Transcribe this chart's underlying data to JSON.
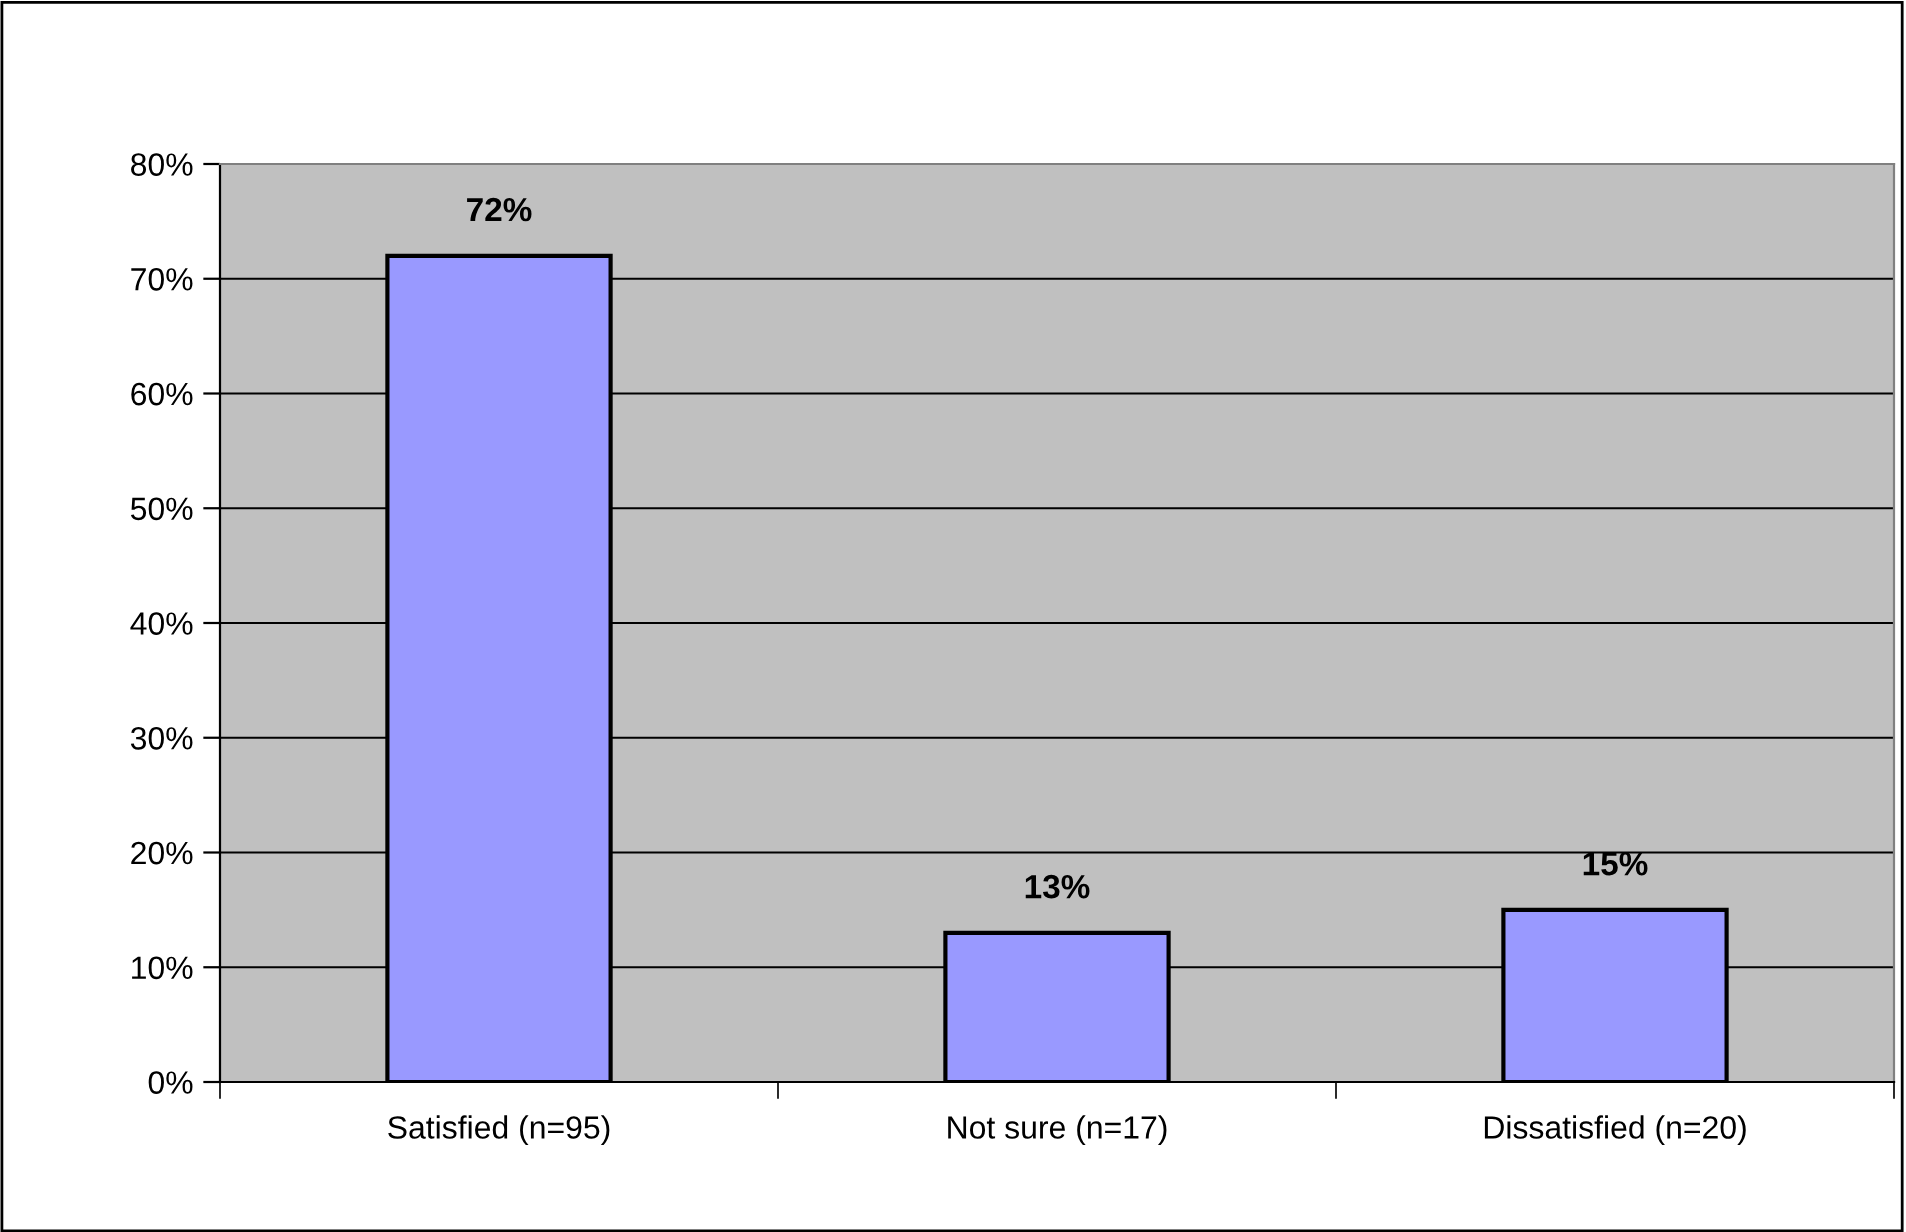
{
  "chart_data": {
    "type": "bar",
    "categories": [
      "Satisfied (n=95)",
      "Not sure (n=17)",
      "Dissatisfied (n=20)"
    ],
    "values": [
      72,
      13,
      15
    ],
    "color": "#9999ff",
    "value_labels": [
      "72%",
      "13%",
      "15%"
    ],
    "ylim": [
      0,
      80
    ],
    "yticks": [
      {
        "value": 0,
        "label": "0%"
      },
      {
        "value": 10,
        "label": "10%"
      },
      {
        "value": 20,
        "label": "20%"
      },
      {
        "value": 30,
        "label": "30%"
      },
      {
        "value": 40,
        "label": "40%"
      },
      {
        "value": 50,
        "label": "50%"
      },
      {
        "value": 60,
        "label": "60%"
      },
      {
        "value": 70,
        "label": "70%"
      },
      {
        "value": 80,
        "label": "80%"
      }
    ],
    "grid": "y"
  }
}
